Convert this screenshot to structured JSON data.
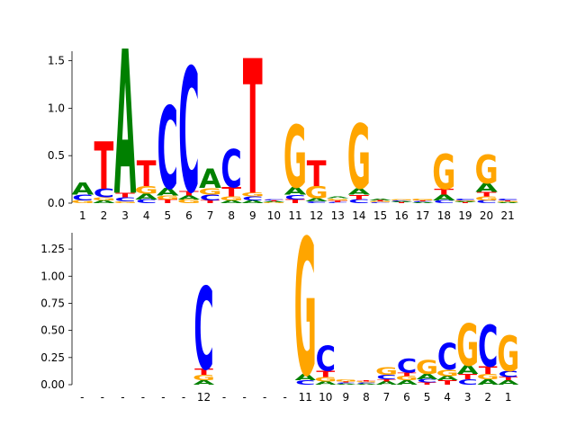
{
  "chart_data": [
    {
      "type": "sequence-logo",
      "title": "",
      "xlabel": "",
      "ylabel": "",
      "ylim": [
        0,
        1.6
      ],
      "yticks": [
        "0.0",
        "0.5",
        "1.0",
        "1.5"
      ],
      "xtick_labels": [
        "1",
        "2",
        "3",
        "4",
        "5",
        "6",
        "7",
        "8",
        "9",
        "10",
        "11",
        "12",
        "13",
        "14",
        "15",
        "16",
        "17",
        "18",
        "19",
        "20",
        "21"
      ],
      "colors": {
        "A": "#008000",
        "C": "#0000ff",
        "G": "#ffa500",
        "T": "#ff0000"
      },
      "columns": [
        [
          [
            "G",
            0.03
          ],
          [
            "C",
            0.06
          ],
          [
            "A",
            0.13
          ]
        ],
        [
          [
            "A",
            0.03
          ],
          [
            "G",
            0.03
          ],
          [
            "C",
            0.09
          ],
          [
            "T",
            0.5
          ]
        ],
        [
          [
            "G",
            0.02
          ],
          [
            "C",
            0.04
          ],
          [
            "T",
            0.05
          ],
          [
            "A",
            1.52
          ]
        ],
        [
          [
            "C",
            0.04
          ],
          [
            "A",
            0.06
          ],
          [
            "G",
            0.08
          ],
          [
            "T",
            0.27
          ]
        ],
        [
          [
            "T",
            0.04
          ],
          [
            "G",
            0.04
          ],
          [
            "A",
            0.08
          ],
          [
            "C",
            0.87
          ]
        ],
        [
          [
            "G",
            0.04
          ],
          [
            "A",
            0.04
          ],
          [
            "T",
            0.05
          ],
          [
            "C",
            1.31
          ]
        ],
        [
          [
            "T",
            0.03
          ],
          [
            "C",
            0.06
          ],
          [
            "G",
            0.07
          ],
          [
            "A",
            0.2
          ]
        ],
        [
          [
            "A",
            0.03
          ],
          [
            "G",
            0.04
          ],
          [
            "T",
            0.1
          ],
          [
            "C",
            0.4
          ]
        ],
        [
          [
            "A",
            0.03
          ],
          [
            "C",
            0.04
          ],
          [
            "G",
            0.04
          ],
          [
            "T",
            1.42
          ]
        ],
        [
          [
            "G",
            0.01
          ],
          [
            "A",
            0.01
          ],
          [
            "T",
            0.01
          ],
          [
            "C",
            0.01
          ]
        ],
        [
          [
            "T",
            0.04
          ],
          [
            "C",
            0.05
          ],
          [
            "A",
            0.08
          ],
          [
            "G",
            0.66
          ]
        ],
        [
          [
            "C",
            0.02
          ],
          [
            "A",
            0.03
          ],
          [
            "G",
            0.13
          ],
          [
            "T",
            0.27
          ]
        ],
        [
          [
            "C",
            0.01
          ],
          [
            "T",
            0.02
          ],
          [
            "G",
            0.02
          ],
          [
            "A",
            0.02
          ]
        ],
        [
          [
            "C",
            0.04
          ],
          [
            "T",
            0.05
          ],
          [
            "A",
            0.07
          ],
          [
            "G",
            0.68
          ]
        ],
        [
          [
            "C",
            0.01
          ],
          [
            "G",
            0.01
          ],
          [
            "T",
            0.01
          ],
          [
            "A",
            0.02
          ]
        ],
        [
          [
            "T",
            0.01
          ],
          [
            "A",
            0.01
          ],
          [
            "C",
            0.01
          ],
          [
            "G",
            0.01
          ]
        ],
        [
          [
            "A",
            0.01
          ],
          [
            "C",
            0.01
          ],
          [
            "T",
            0.01
          ],
          [
            "G",
            0.02
          ]
        ],
        [
          [
            "C",
            0.03
          ],
          [
            "A",
            0.06
          ],
          [
            "T",
            0.06
          ],
          [
            "G",
            0.37
          ]
        ],
        [
          [
            "T",
            0.01
          ],
          [
            "A",
            0.01
          ],
          [
            "G",
            0.01
          ],
          [
            "C",
            0.02
          ]
        ],
        [
          [
            "C",
            0.03
          ],
          [
            "G",
            0.04
          ],
          [
            "T",
            0.05
          ],
          [
            "A",
            0.09
          ],
          [
            "G",
            0.3
          ]
        ],
        [
          [
            "A",
            0.01
          ],
          [
            "G",
            0.01
          ],
          [
            "T",
            0.01
          ],
          [
            "C",
            0.02
          ]
        ]
      ]
    },
    {
      "type": "sequence-logo",
      "title": "",
      "xlabel": "",
      "ylabel": "",
      "ylim": [
        0,
        1.4
      ],
      "yticks": [
        "0.00",
        "0.25",
        "0.50",
        "0.75",
        "1.00",
        "1.25"
      ],
      "xtick_labels": [
        "-",
        "-",
        "-",
        "-",
        "-",
        "-",
        "12",
        "-",
        "-",
        "-",
        "-",
        "11",
        "10",
        "9",
        "8",
        "7",
        "6",
        "5",
        "4",
        "3",
        "2",
        "1"
      ],
      "colors": {
        "A": "#008000",
        "C": "#0000ff",
        "G": "#ffa500",
        "T": "#ff0000"
      },
      "columns": [
        [],
        [],
        [],
        [],
        [],
        [],
        [
          [
            "A",
            0.04
          ],
          [
            "G",
            0.05
          ],
          [
            "T",
            0.06
          ],
          [
            "C",
            0.76
          ]
        ],
        [],
        [],
        [],
        [],
        [
          [
            "C",
            0.04
          ],
          [
            "A",
            0.06
          ],
          [
            "G",
            1.26
          ]
        ],
        [
          [
            "A",
            0.03
          ],
          [
            "G",
            0.04
          ],
          [
            "T",
            0.06
          ],
          [
            "C",
            0.23
          ]
        ],
        [
          [
            "A",
            0.01
          ],
          [
            "C",
            0.01
          ],
          [
            "T",
            0.01
          ],
          [
            "G",
            0.02
          ]
        ],
        [
          [
            "A",
            0.01
          ],
          [
            "C",
            0.01
          ],
          [
            "G",
            0.01
          ],
          [
            "T",
            0.01
          ]
        ],
        [
          [
            "A",
            0.03
          ],
          [
            "T",
            0.02
          ],
          [
            "C",
            0.04
          ],
          [
            "G",
            0.07
          ]
        ],
        [
          [
            "A",
            0.04
          ],
          [
            "G",
            0.04
          ],
          [
            "T",
            0.03
          ],
          [
            "C",
            0.13
          ]
        ],
        [
          [
            "T",
            0.02
          ],
          [
            "C",
            0.03
          ],
          [
            "A",
            0.05
          ],
          [
            "G",
            0.13
          ]
        ],
        [
          [
            "T",
            0.04
          ],
          [
            "A",
            0.04
          ],
          [
            "G",
            0.06
          ],
          [
            "C",
            0.24
          ]
        ],
        [
          [
            "C",
            0.05
          ],
          [
            "T",
            0.05
          ],
          [
            "A",
            0.08
          ],
          [
            "G",
            0.39
          ]
        ],
        [
          [
            "A",
            0.05
          ],
          [
            "G",
            0.05
          ],
          [
            "T",
            0.07
          ],
          [
            "C",
            0.38
          ]
        ],
        [
          [
            "A",
            0.04
          ],
          [
            "T",
            0.03
          ],
          [
            "C",
            0.06
          ],
          [
            "G",
            0.33
          ]
        ]
      ]
    }
  ]
}
